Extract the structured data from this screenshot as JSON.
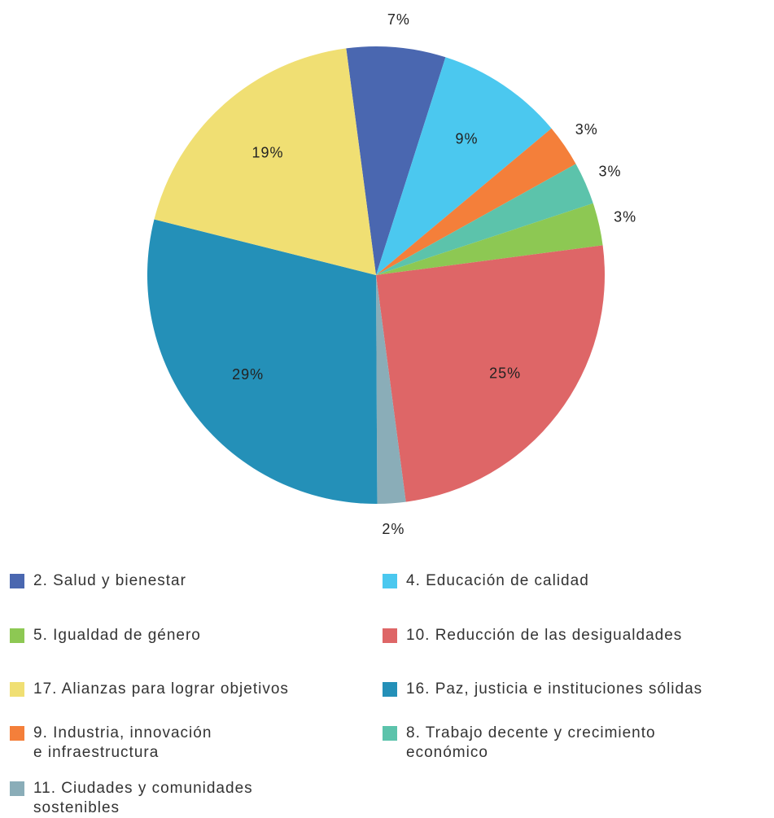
{
  "chart_data": {
    "type": "pie",
    "categories": [
      "2. Salud y bienestar",
      "4. Educación de calidad",
      "9. Industria, innovación\ne infraestructura",
      "8. Trabajo decente y crecimiento\neconómico",
      "5. Igualdad de género",
      "10. Reducción de las desigualdades",
      "11. Ciudades y comunidades\nsostenibles",
      "16. Paz, justicia e instituciones sólidas",
      "17. Alianzas para lograr objetivos"
    ],
    "values": [
      7,
      9,
      3,
      3,
      3,
      25,
      2,
      29,
      19
    ],
    "value_labels": [
      "7%",
      "9%",
      "3%",
      "3%",
      "3%",
      "25%",
      "2%",
      "29%",
      "19%"
    ],
    "colors": [
      "#4a67b0",
      "#4bc8ef",
      "#f47f3a",
      "#5cc3ab",
      "#8dc853",
      "#de6667",
      "#8aadb8",
      "#2490b8",
      "#f0df73"
    ],
    "legend": "bottom"
  }
}
